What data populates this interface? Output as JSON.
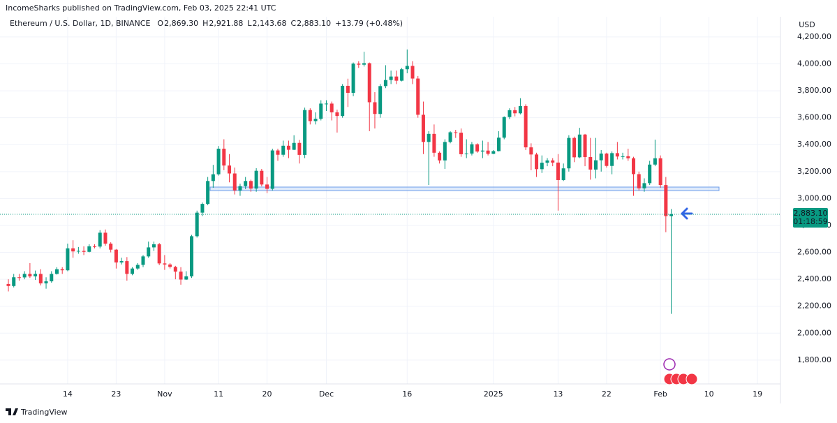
{
  "header": "IncomeSharks published on TradingView.com, Feb 03, 2025 22:41 UTC",
  "footer": "TradingView",
  "chart_data": {
    "type": "candlestick",
    "symbol": "Ethereum / U.S. Dollar, 1D, BINANCE",
    "ohlc_legend": [
      {
        "key": "O",
        "value": "2,869.30"
      },
      {
        "key": "H",
        "value": "2,921.88"
      },
      {
        "key": "L",
        "value": "2,143.68"
      },
      {
        "key": "C",
        "value": "2,883.10"
      }
    ],
    "change": "+13.79 (+0.48%)",
    "y_axis_label": "USD",
    "last_price_label": "2,883.10",
    "countdown": "01:18:59",
    "up_color": "#089981",
    "down_color": "#f23645",
    "grid": true,
    "ylim": [
      1623,
      4350
    ],
    "yticks": [
      {
        "value": 1800,
        "label": "1,800.00"
      },
      {
        "value": 2000,
        "label": "2,000.00"
      },
      {
        "value": 2200,
        "label": "2,200.00"
      },
      {
        "value": 2400,
        "label": "2,400.00"
      },
      {
        "value": 2600,
        "label": "2,600.00"
      },
      {
        "value": 2800,
        "label": "2,800.00"
      },
      {
        "value": 3000,
        "label": "3,000.00"
      },
      {
        "value": 3200,
        "label": "3,200.00"
      },
      {
        "value": 3400,
        "label": "3,400.00"
      },
      {
        "value": 3600,
        "label": "3,600.00"
      },
      {
        "value": 3800,
        "label": "3,800.00"
      },
      {
        "value": 4000,
        "label": "4,000.00"
      },
      {
        "value": 4200,
        "label": "4,200.00"
      }
    ],
    "categories": [
      null,
      null,
      null,
      null,
      null,
      null,
      null,
      null,
      null,
      null,
      null,
      "14",
      null,
      null,
      null,
      null,
      null,
      null,
      null,
      null,
      "23",
      null,
      null,
      null,
      null,
      null,
      null,
      null,
      null,
      "Nov",
      null,
      null,
      null,
      null,
      null,
      null,
      null,
      null,
      null,
      "11",
      null,
      null,
      null,
      null,
      null,
      null,
      null,
      null,
      "20",
      null,
      null,
      null,
      null,
      null,
      null,
      null,
      null,
      null,
      null,
      "Dec",
      null,
      null,
      null,
      null,
      null,
      null,
      null,
      null,
      null,
      null,
      null,
      null,
      null,
      null,
      "16",
      null,
      null,
      null,
      null,
      null,
      null,
      null,
      null,
      null,
      null,
      null,
      null,
      null,
      null,
      null,
      "2025",
      null,
      null,
      null,
      null,
      null,
      null,
      null,
      null,
      null,
      null,
      null,
      "13",
      null,
      null,
      null,
      null,
      null,
      null,
      null,
      null,
      "22",
      null,
      null,
      null,
      null,
      null,
      null,
      null,
      null,
      null,
      "Feb",
      null,
      null,
      null,
      null,
      null,
      null,
      null,
      null,
      "10",
      null,
      null,
      null,
      null,
      null,
      null,
      null,
      null,
      "19",
      null,
      null,
      null,
      null
    ],
    "open": [
      2365,
      2350,
      2415,
      2414,
      2440,
      2422,
      2440,
      2370,
      2385,
      2440,
      2475,
      2467,
      2630,
      2607,
      2611,
      2604,
      2645,
      2643,
      2746,
      2665,
      2620,
      2525,
      2535,
      2440,
      2480,
      2507,
      2570,
      2637,
      2660,
      2518,
      2510,
      2492,
      2457,
      2398,
      2422,
      2720,
      2895,
      2960,
      3130,
      3180,
      3370,
      3245,
      3186,
      3060,
      3092,
      3130,
      3074,
      3206,
      3104,
      3072,
      3357,
      3325,
      3392,
      3362,
      3413,
      3324,
      3657,
      3575,
      3592,
      3705,
      3705,
      3640,
      3613,
      3837,
      3785,
      4002,
      3994,
      4005,
      3715,
      3628,
      3835,
      3880,
      3906,
      3875,
      3960,
      3985,
      3891,
      3622,
      3420,
      3480,
      3340,
      3283,
      3420,
      3492,
      3489,
      3329,
      3334,
      3403,
      3349,
      3356,
      3332,
      3352,
      3452,
      3605,
      3656,
      3633,
      3687,
      3380,
      3327,
      3218,
      3266,
      3283,
      3267,
      3137,
      3224,
      3450,
      3306,
      3475,
      3308,
      3215,
      3284,
      3334,
      3242,
      3337,
      3312,
      3314,
      3299,
      3181,
      3076,
      3114,
      3252,
      3299,
      3100,
      2869.3,
      null,
      null,
      null,
      null,
      null,
      null,
      null,
      null,
      null,
      null,
      null,
      null,
      null,
      null,
      null,
      null,
      null,
      null,
      null,
      null
    ],
    "high": [
      2400,
      2440,
      2440,
      2460,
      2520,
      2465,
      2475,
      2415,
      2460,
      2490,
      2490,
      2665,
      2690,
      2640,
      2645,
      2660,
      2660,
      2765,
      2770,
      2675,
      2625,
      2560,
      2565,
      2490,
      2520,
      2580,
      2680,
      2680,
      2670,
      2580,
      2520,
      2500,
      2490,
      2460,
      2730,
      2910,
      2970,
      3160,
      3250,
      3390,
      3440,
      3330,
      3230,
      3110,
      3160,
      3140,
      3225,
      3220,
      3160,
      3370,
      3370,
      3430,
      3430,
      3470,
      3435,
      3675,
      3670,
      3640,
      3730,
      3730,
      3720,
      3660,
      3850,
      3890,
      4010,
      4020,
      4090,
      4010,
      3790,
      3850,
      3990,
      3950,
      3950,
      3970,
      4107,
      4020,
      3910,
      3720,
      3500,
      3550,
      3350,
      3440,
      3500,
      3510,
      3520,
      3440,
      3420,
      3410,
      3430,
      3420,
      3360,
      3500,
      3610,
      3670,
      3680,
      3745,
      3700,
      3410,
      3340,
      3320,
      3300,
      3300,
      3330,
      3260,
      3470,
      3460,
      3525,
      3480,
      3450,
      3450,
      3360,
      3340,
      3350,
      3420,
      3340,
      3370,
      3310,
      3200,
      3150,
      3280,
      3437,
      3320,
      3160,
      2921.88,
      null,
      null,
      null,
      null,
      null,
      null,
      null,
      null,
      null,
      null,
      null,
      null,
      null,
      null,
      null,
      null,
      null,
      null,
      null,
      null
    ],
    "low": [
      2310,
      2340,
      2390,
      2400,
      2410,
      2395,
      2355,
      2330,
      2375,
      2435,
      2440,
      2460,
      2560,
      2590,
      2580,
      2600,
      2630,
      2630,
      2650,
      2600,
      2480,
      2510,
      2390,
      2430,
      2470,
      2490,
      2560,
      2610,
      2505,
      2470,
      2480,
      2400,
      2360,
      2395,
      2410,
      2710,
      2870,
      2950,
      3080,
      3170,
      3210,
      3120,
      3030,
      3020,
      3070,
      3050,
      3050,
      3090,
      3040,
      3060,
      3280,
      3310,
      3300,
      3360,
      3260,
      3300,
      3550,
      3550,
      3580,
      3650,
      3580,
      3490,
      3600,
      3680,
      3760,
      3970,
      3980,
      3500,
      3520,
      3600,
      3820,
      3850,
      3850,
      3870,
      3930,
      3850,
      3600,
      3330,
      3100,
      3310,
      3260,
      3220,
      3410,
      3450,
      3310,
      3300,
      3320,
      3340,
      3300,
      3320,
      3330,
      3350,
      3440,
      3590,
      3610,
      3625,
      3360,
      3210,
      3160,
      3190,
      3240,
      3240,
      2910,
      3130,
      3200,
      3270,
      3300,
      3240,
      3140,
      3150,
      3200,
      3230,
      3180,
      3290,
      3290,
      3280,
      3020,
      3060,
      3050,
      3100,
      3240,
      3080,
      2750,
      2143.68,
      null,
      null,
      null,
      null,
      null,
      null,
      null,
      null,
      null,
      null,
      null,
      null,
      null,
      null,
      null,
      null,
      null,
      null,
      null,
      null
    ],
    "close": [
      2350,
      2415,
      2414,
      2440,
      2422,
      2440,
      2370,
      2385,
      2440,
      2475,
      2467,
      2630,
      2607,
      2611,
      2604,
      2645,
      2643,
      2746,
      2665,
      2620,
      2525,
      2535,
      2440,
      2480,
      2507,
      2570,
      2637,
      2660,
      2518,
      2510,
      2492,
      2457,
      2398,
      2422,
      2720,
      2895,
      2960,
      3130,
      3180,
      3370,
      3245,
      3186,
      3060,
      3092,
      3130,
      3074,
      3206,
      3104,
      3072,
      3357,
      3325,
      3392,
      3362,
      3413,
      3324,
      3657,
      3575,
      3592,
      3705,
      3705,
      3640,
      3613,
      3837,
      3785,
      4002,
      3994,
      4005,
      3715,
      3628,
      3835,
      3880,
      3906,
      3875,
      3960,
      3985,
      3891,
      3622,
      3420,
      3480,
      3340,
      3283,
      3420,
      3492,
      3489,
      3329,
      3334,
      3403,
      3349,
      3356,
      3332,
      3352,
      3452,
      3605,
      3656,
      3633,
      3687,
      3380,
      3327,
      3218,
      3266,
      3283,
      3267,
      3137,
      3224,
      3450,
      3306,
      3475,
      3308,
      3215,
      3284,
      3334,
      3242,
      3337,
      3312,
      3314,
      3299,
      3181,
      3076,
      3114,
      3252,
      3299,
      3100,
      2869.3,
      2883.1,
      null,
      null,
      null,
      null,
      null,
      null,
      null,
      null,
      null,
      null,
      null,
      null,
      null,
      null,
      null,
      null,
      null,
      null,
      null,
      null
    ]
  }
}
